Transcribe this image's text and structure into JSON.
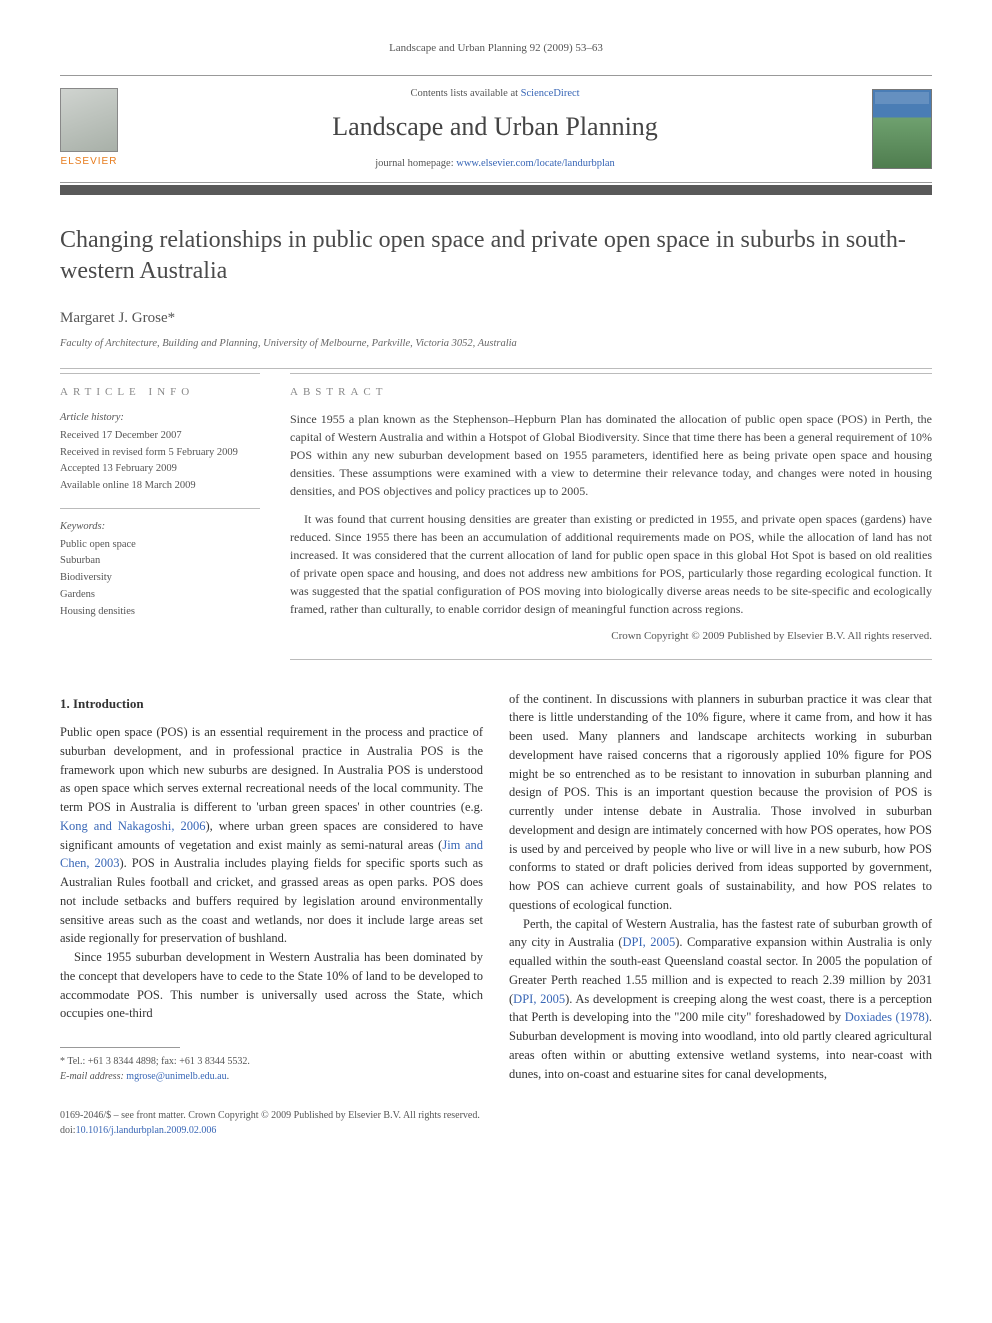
{
  "running_head": "Landscape and Urban Planning 92 (2009) 53–63",
  "masthead": {
    "contents_prefix": "Contents lists available at ",
    "contents_link": "ScienceDirect",
    "journal": "Landscape and Urban Planning",
    "homepage_prefix": "journal homepage: ",
    "homepage_url": "www.elsevier.com/locate/landurbplan",
    "publisher": "ELSEVIER"
  },
  "article": {
    "title": "Changing relationships in public open space and private open space in suburbs in south-western Australia",
    "author": "Margaret J. Grose",
    "author_mark": "*",
    "affiliation": "Faculty of Architecture, Building and Planning, University of Melbourne, Parkville, Victoria 3052, Australia"
  },
  "info": {
    "label": "article info",
    "history_heading": "Article history:",
    "history": [
      "Received 17 December 2007",
      "Received in revised form 5 February 2009",
      "Accepted 13 February 2009",
      "Available online 18 March 2009"
    ],
    "keywords_heading": "Keywords:",
    "keywords": [
      "Public open space",
      "Suburban",
      "Biodiversity",
      "Gardens",
      "Housing densities"
    ]
  },
  "abstract": {
    "label": "abstract",
    "p1": "Since 1955 a plan known as the Stephenson–Hepburn Plan has dominated the allocation of public open space (POS) in Perth, the capital of Western Australia and within a Hotspot of Global Biodiversity. Since that time there has been a general requirement of 10% POS within any new suburban development based on 1955 parameters, identified here as being private open space and housing densities. These assumptions were examined with a view to determine their relevance today, and changes were noted in housing densities, and POS objectives and policy practices up to 2005.",
    "p2": "It was found that current housing densities are greater than existing or predicted in 1955, and private open spaces (gardens) have reduced. Since 1955 there has been an accumulation of additional requirements made on POS, while the allocation of land has not increased. It was considered that the current allocation of land for public open space in this global Hot Spot is based on old realities of private open space and housing, and does not address new ambitions for POS, particularly those regarding ecological function. It was suggested that the spatial configuration of POS moving into biologically diverse areas needs to be site-specific and ecologically framed, rather than culturally, to enable corridor design of meaningful function across regions.",
    "copyright": "Crown Copyright © 2009 Published by Elsevier B.V. All rights reserved."
  },
  "body": {
    "heading": "1. Introduction",
    "p1a": "Public open space (POS) is an essential requirement in the process and practice of suburban development, and in professional practice in Australia POS is the framework upon which new suburbs are designed. In Australia POS is understood as open space which serves external recreational needs of the local community. The term POS in Australia is different to 'urban green spaces' in other countries (e.g. ",
    "ref1": "Kong and Nakagoshi, 2006",
    "p1b": "), where urban green spaces are considered to have significant amounts of vegetation and exist mainly as semi-natural areas (",
    "ref2": "Jim and Chen, 2003",
    "p1c": "). POS in Australia includes playing fields for specific sports such as Australian Rules football and cricket, and grassed areas as open parks. POS does not include setbacks and buffers required by legislation around environmentally sensitive areas such as the coast and wetlands, nor does it include large areas set aside regionally for preservation of bushland.",
    "p2": "Since 1955 suburban development in Western Australia has been dominated by the concept that developers have to cede to the State 10% of land to be developed to accommodate POS. This number is universally used across the State, which occupies one-third",
    "p3": "of the continent. In discussions with planners in suburban practice it was clear that there is little understanding of the 10% figure, where it came from, and how it has been used. Many planners and landscape architects working in suburban development have raised concerns that a rigorously applied 10% figure for POS might be so entrenched as to be resistant to innovation in suburban planning and design of POS. This is an important question because the provision of POS is currently under intense debate in Australia. Those involved in suburban development and design are intimately concerned with how POS operates, how POS is used by and perceived by people who live or will live in a new suburb, how POS conforms to stated or draft policies derived from ideas supported by government, how POS can achieve current goals of sustainability, and how POS relates to questions of ecological function.",
    "p4a": "Perth, the capital of Western Australia, has the fastest rate of suburban growth of any city in Australia (",
    "ref3": "DPI, 2005",
    "p4b": "). Comparative expansion within Australia is only equalled within the south-east Queensland coastal sector. In 2005 the population of Greater Perth reached 1.55 million and is expected to reach 2.39 million by 2031 (",
    "ref4": "DPI, 2005",
    "p4c": "). As development is creeping along the west coast, there is a perception that Perth is developing into the \"200 mile city\" foreshadowed by ",
    "ref5": "Doxiades (1978)",
    "p4d": ". Suburban development is moving into woodland, into old partly cleared agricultural areas often within or abutting extensive wetland systems, into near-coast with dunes, into on-coast and estuarine sites for canal developments,"
  },
  "footnote": {
    "star": "*",
    "tel": " Tel.: +61 3 8344 4898; fax: +61 3 8344 5532.",
    "email_label": "E-mail address: ",
    "email": "mgrose@unimelb.edu.au",
    "email_suffix": "."
  },
  "footer": {
    "line1": "0169-2046/$ – see front matter. Crown Copyright © 2009 Published by Elsevier B.V. All rights reserved.",
    "doi_label": "doi:",
    "doi": "10.1016/j.landurbplan.2009.02.006"
  }
}
